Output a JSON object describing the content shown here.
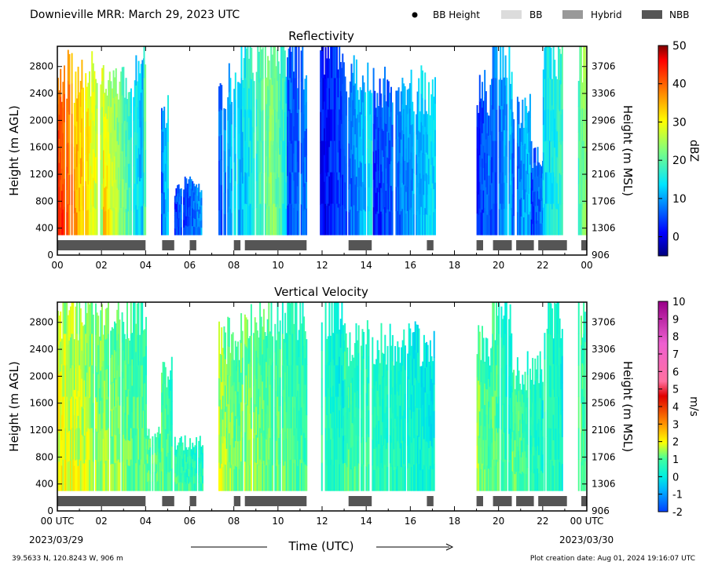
{
  "header": {
    "title": "Downieville MRR:  March 29, 2023 UTC",
    "legend": [
      {
        "label": "BB Height",
        "kind": "dot",
        "color": "#000000"
      },
      {
        "label": "BB",
        "kind": "box",
        "color": "#dcdcdc"
      },
      {
        "label": "Hybrid",
        "kind": "box",
        "color": "#999999"
      },
      {
        "label": "NBB",
        "kind": "box",
        "color": "#555555"
      }
    ]
  },
  "footer": {
    "location": "39.5633 N, 120.8243 W, 906 m",
    "creation": "Plot creation date: Aug 01, 2024 19:16:07 UTC",
    "xlabel": "Time (UTC)",
    "start_date": "2023/03/29",
    "end_date": "2023/03/30"
  },
  "chart_data": [
    {
      "type": "heatmap",
      "title": "Reflectivity",
      "ylabel": "Height (m AGL)",
      "y2label": "Height (m MSL)",
      "x_ticks": [
        "00",
        "02",
        "04",
        "06",
        "08",
        "10",
        "12",
        "14",
        "16",
        "18",
        "20",
        "22",
        "00"
      ],
      "xlim_hours": [
        0,
        24
      ],
      "y_ticks": [
        0,
        400,
        800,
        1200,
        1600,
        2000,
        2400,
        2800
      ],
      "ylim": [
        0,
        3100
      ],
      "y2_ticks": [
        906,
        1306,
        1706,
        2106,
        2506,
        2906,
        3306,
        3706
      ],
      "colorbar": {
        "label": "dBZ",
        "min": -5,
        "max": 50,
        "ticks": [
          0,
          10,
          20,
          30,
          40,
          50
        ]
      },
      "data_bottom_m": 300,
      "precip_blocks": [
        {
          "x": [
            2.0,
            3.9
          ],
          "dbz": [
            35,
            10
          ],
          "top": 2650
        },
        {
          "x": [
            0.0,
            2.0
          ],
          "dbz": [
            45,
            25
          ],
          "top": 2650
        },
        {
          "x": [
            3.9,
            4.0
          ],
          "dbz": [
            20,
            20
          ],
          "top": 3000
        },
        {
          "x": [
            4.7,
            5.0
          ],
          "dbz": [
            5,
            15
          ],
          "top": 2100
        },
        {
          "x": [
            5.3,
            5.7
          ],
          "dbz": [
            2,
            8
          ],
          "top": 1000
        },
        {
          "x": [
            5.7,
            6.5
          ],
          "dbz": [
            3,
            10
          ],
          "top": 1050
        },
        {
          "x": [
            7.3,
            8.2
          ],
          "dbz": [
            5,
            15
          ],
          "top": 2500
        },
        {
          "x": [
            8.2,
            9.6
          ],
          "dbz": [
            10,
            22
          ],
          "top": 3000
        },
        {
          "x": [
            9.6,
            10.4
          ],
          "dbz": [
            25,
            15
          ],
          "top": 3000
        },
        {
          "x": [
            10.4,
            11.3
          ],
          "dbz": [
            5,
            8
          ],
          "top": 2900
        },
        {
          "x": [
            11.9,
            12.9
          ],
          "dbz": [
            0,
            5
          ],
          "top": 3000
        },
        {
          "x": [
            12.9,
            14.3
          ],
          "dbz": [
            3,
            15
          ],
          "top": 2600
        },
        {
          "x": [
            14.3,
            17.1
          ],
          "dbz": [
            2,
            14
          ],
          "top": 2450
        },
        {
          "x": [
            19.0,
            19.6
          ],
          "dbz": [
            2,
            8
          ],
          "top": 2400
        },
        {
          "x": [
            19.6,
            20.6
          ],
          "dbz": [
            4,
            12
          ],
          "top": 3000
        },
        {
          "x": [
            20.6,
            21.4
          ],
          "dbz": [
            5,
            12
          ],
          "top": 2100
        },
        {
          "x": [
            21.4,
            22.0
          ],
          "dbz": [
            3,
            8
          ],
          "top": 1500
        },
        {
          "x": [
            22.0,
            22.9
          ],
          "dbz": [
            12,
            18
          ],
          "top": 3000
        },
        {
          "x": [
            23.6,
            24.0
          ],
          "dbz": [
            18,
            25
          ],
          "top": 3000
        }
      ],
      "nbb_segments": [
        [
          0.0,
          4.0
        ],
        [
          4.75,
          5.3
        ],
        [
          6.0,
          6.3
        ],
        [
          8.0,
          8.3
        ],
        [
          8.5,
          11.3
        ],
        [
          13.2,
          14.25
        ],
        [
          16.75,
          17.05
        ],
        [
          19.0,
          19.3
        ],
        [
          19.75,
          20.6
        ],
        [
          20.8,
          21.6
        ],
        [
          21.8,
          23.1
        ],
        [
          23.75,
          24.0
        ]
      ]
    },
    {
      "type": "heatmap",
      "title": "Vertical Velocity",
      "ylabel": "Height (m AGL)",
      "y2label": "Height (m MSL)",
      "x_ticks": [
        "00 UTC",
        "02",
        "04",
        "06",
        "08",
        "10",
        "12",
        "14",
        "16",
        "18",
        "20",
        "22",
        "00 UTC"
      ],
      "xlim_hours": [
        0,
        24
      ],
      "y_ticks": [
        0,
        400,
        800,
        1200,
        1600,
        2000,
        2400,
        2800
      ],
      "ylim": [
        0,
        3100
      ],
      "y2_ticks": [
        906,
        1306,
        1706,
        2106,
        2506,
        2906,
        3306,
        3706
      ],
      "colorbar": {
        "label": "m/s",
        "min": -2,
        "max": 10,
        "ticks": [
          -2,
          -1,
          0,
          1,
          2,
          3,
          4,
          5,
          6,
          7,
          8,
          9,
          10
        ]
      },
      "data_bottom_m": 300,
      "precip_blocks": [
        {
          "x": [
            0.0,
            4.0
          ],
          "ms": [
            2.0,
            1.0
          ],
          "top": 3000
        },
        {
          "x": [
            4.0,
            5.0
          ],
          "ms": [
            1.3,
            0.9
          ],
          "top": 1200
        },
        {
          "x": [
            4.7,
            5.2
          ],
          "ms": [
            1.2,
            0.8
          ],
          "top": 2100
        },
        {
          "x": [
            5.3,
            6.6
          ],
          "ms": [
            1.0,
            0.6
          ],
          "top": 1000
        },
        {
          "x": [
            7.3,
            8.3
          ],
          "ms": [
            1.8,
            1.0
          ],
          "top": 2500
        },
        {
          "x": [
            8.3,
            11.3
          ],
          "ms": [
            1.5,
            0.8
          ],
          "top": 3000
        },
        {
          "x": [
            11.9,
            13.0
          ],
          "ms": [
            0.8,
            0.3
          ],
          "top": 3000
        },
        {
          "x": [
            13.0,
            17.1
          ],
          "ms": [
            1.0,
            0.2
          ],
          "top": 2500
        },
        {
          "x": [
            19.0,
            19.7
          ],
          "ms": [
            1.5,
            0.8
          ],
          "top": 2400
        },
        {
          "x": [
            19.7,
            20.6
          ],
          "ms": [
            1.2,
            0.4
          ],
          "top": 3000
        },
        {
          "x": [
            20.6,
            22.0
          ],
          "ms": [
            1.2,
            0.5
          ],
          "top": 2100
        },
        {
          "x": [
            22.0,
            22.9
          ],
          "ms": [
            1.0,
            0.3
          ],
          "top": 3000
        },
        {
          "x": [
            23.6,
            24.0
          ],
          "ms": [
            1.3,
            0.7
          ],
          "top": 3000
        }
      ],
      "nbb_segments": [
        [
          0.0,
          4.0
        ],
        [
          4.75,
          5.3
        ],
        [
          6.0,
          6.3
        ],
        [
          8.0,
          8.3
        ],
        [
          8.5,
          11.3
        ],
        [
          13.2,
          14.25
        ],
        [
          16.75,
          17.05
        ],
        [
          19.0,
          19.3
        ],
        [
          19.75,
          20.6
        ],
        [
          20.8,
          21.6
        ],
        [
          21.8,
          23.1
        ],
        [
          23.75,
          24.0
        ]
      ]
    }
  ]
}
